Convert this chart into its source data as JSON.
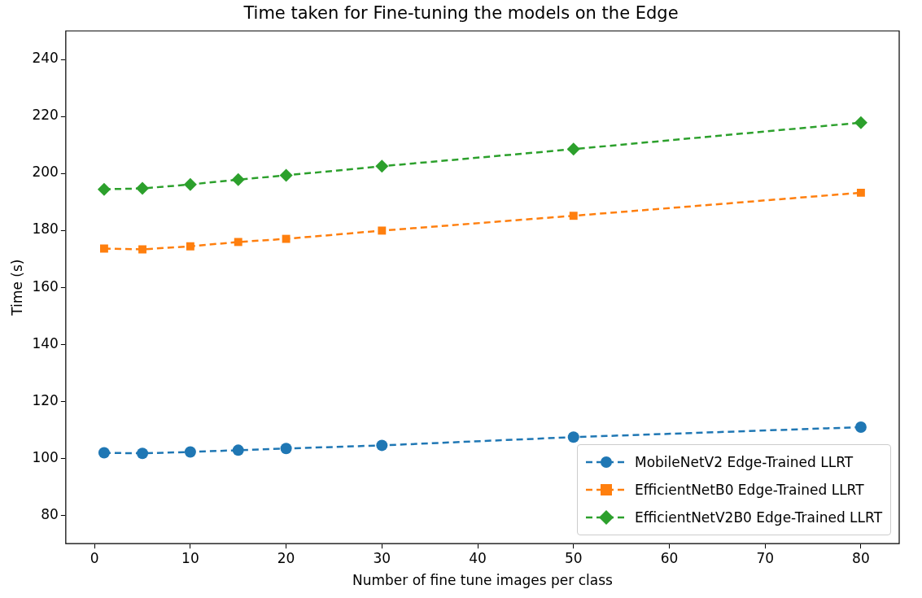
{
  "chart_data": {
    "type": "line",
    "title": "Time taken for Fine-tuning the models on the Edge",
    "xlabel": "Number of fine tune images per class",
    "ylabel": "Time (s)",
    "x": [
      1,
      5,
      10,
      15,
      20,
      30,
      50,
      80
    ],
    "series": [
      {
        "name": "MobileNetV2 Edge-Trained LLRT",
        "color": "#1f77b4",
        "marker": "circle",
        "values": [
          101.9,
          101.7,
          102.2,
          102.8,
          103.4,
          104.5,
          107.4,
          110.9
        ]
      },
      {
        "name": "EfficientNetB0 Edge-Trained LLRT",
        "color": "#ff7f0e",
        "marker": "square",
        "values": [
          173.6,
          173.3,
          174.4,
          175.9,
          177.0,
          179.9,
          185.1,
          193.2
        ]
      },
      {
        "name": "EfficientNetV2B0 Edge-Trained LLRT",
        "color": "#2ca02c",
        "marker": "diamond",
        "values": [
          194.4,
          194.7,
          196.1,
          197.8,
          199.3,
          202.5,
          208.5,
          217.8
        ]
      }
    ],
    "xlim": [
      -3,
      84
    ],
    "ylim": [
      70,
      250
    ],
    "xticks": [
      0,
      10,
      20,
      30,
      40,
      50,
      60,
      70,
      80
    ],
    "yticks": [
      80,
      100,
      120,
      140,
      160,
      180,
      200,
      220,
      240
    ],
    "grid": false,
    "legend": "bottom right",
    "line_style": "dashed"
  }
}
